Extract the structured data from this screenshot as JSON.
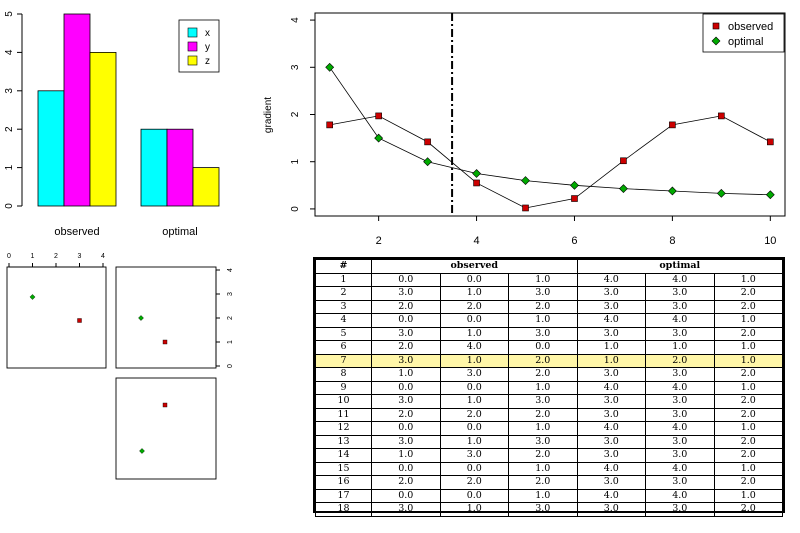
{
  "colors": {
    "x": "#00FFFF",
    "y": "#FF00FF",
    "z": "#FFFF00",
    "observed": "#CC0000",
    "optimal": "#00AA00",
    "highlight": "#FFF6A8"
  },
  "bar_legend": [
    "x",
    "y",
    "z"
  ],
  "line_legend": [
    "observed",
    "optimal"
  ],
  "table": {
    "header": [
      "#",
      "observed",
      "optimal"
    ],
    "highlight_row": "7",
    "rows": [
      [
        "1",
        "0.0",
        "0.0",
        "1.0",
        "4.0",
        "4.0",
        "1.0"
      ],
      [
        "2",
        "3.0",
        "1.0",
        "3.0",
        "3.0",
        "3.0",
        "2.0"
      ],
      [
        "3",
        "2.0",
        "2.0",
        "2.0",
        "3.0",
        "3.0",
        "2.0"
      ],
      [
        "4",
        "0.0",
        "0.0",
        "1.0",
        "4.0",
        "4.0",
        "1.0"
      ],
      [
        "5",
        "3.0",
        "1.0",
        "3.0",
        "3.0",
        "3.0",
        "2.0"
      ],
      [
        "6",
        "2.0",
        "4.0",
        "0.0",
        "1.0",
        "1.0",
        "1.0"
      ],
      [
        "7",
        "3.0",
        "1.0",
        "2.0",
        "1.0",
        "2.0",
        "1.0"
      ],
      [
        "8",
        "1.0",
        "3.0",
        "2.0",
        "3.0",
        "3.0",
        "2.0"
      ],
      [
        "9",
        "0.0",
        "0.0",
        "1.0",
        "4.0",
        "4.0",
        "1.0"
      ],
      [
        "10",
        "3.0",
        "1.0",
        "3.0",
        "3.0",
        "3.0",
        "2.0"
      ],
      [
        "11",
        "2.0",
        "2.0",
        "2.0",
        "3.0",
        "3.0",
        "2.0"
      ],
      [
        "12",
        "0.0",
        "0.0",
        "1.0",
        "4.0",
        "4.0",
        "1.0"
      ],
      [
        "13",
        "3.0",
        "1.0",
        "3.0",
        "3.0",
        "3.0",
        "2.0"
      ],
      [
        "14",
        "1.0",
        "3.0",
        "2.0",
        "3.0",
        "3.0",
        "2.0"
      ],
      [
        "15",
        "0.0",
        "0.0",
        "1.0",
        "4.0",
        "4.0",
        "1.0"
      ],
      [
        "16",
        "2.0",
        "2.0",
        "2.0",
        "3.0",
        "3.0",
        "2.0"
      ],
      [
        "17",
        "0.0",
        "0.0",
        "1.0",
        "4.0",
        "4.0",
        "1.0"
      ],
      [
        "18",
        "3.0",
        "1.0",
        "3.0",
        "3.0",
        "3.0",
        "2.0"
      ]
    ]
  },
  "chart_data": [
    {
      "type": "bar",
      "categories": [
        "observed",
        "optimal"
      ],
      "series": [
        {
          "name": "x",
          "values": [
            3,
            2
          ]
        },
        {
          "name": "y",
          "values": [
            5,
            2
          ]
        },
        {
          "name": "z",
          "values": [
            4,
            1
          ]
        }
      ],
      "ylim": [
        0,
        5
      ],
      "yticks": [
        0,
        1,
        2,
        3,
        4,
        5
      ],
      "legend": "top-right"
    },
    {
      "type": "line",
      "ylabel": "gradient",
      "x": [
        1,
        2,
        3,
        4,
        5,
        6,
        7,
        8,
        9,
        10
      ],
      "series": [
        {
          "name": "observed",
          "values": [
            1.78,
            1.97,
            1.42,
            0.55,
            0.02,
            0.22,
            1.02,
            1.78,
            1.97,
            1.42
          ]
        },
        {
          "name": "optimal",
          "values": [
            3.0,
            1.5,
            1.0,
            0.75,
            0.6,
            0.5,
            0.43,
            0.38,
            0.33,
            0.3
          ]
        }
      ],
      "vline": 3.5,
      "xticks": [
        2,
        4,
        6,
        8,
        10
      ],
      "yticks": [
        0,
        1,
        2,
        3,
        4
      ],
      "xlim": [
        0.7,
        10.3
      ],
      "ylim": [
        -0.15,
        4.15
      ],
      "legend": "top-right"
    },
    {
      "type": "scatter",
      "panel": "top-left",
      "xticks": [
        0,
        1,
        2,
        3,
        4
      ],
      "xlim": [
        0,
        4
      ],
      "points": [
        {
          "series": "optimal",
          "x": 1,
          "y": 2
        },
        {
          "series": "observed",
          "x": 3,
          "y": 1
        }
      ]
    },
    {
      "type": "scatter",
      "panel": "top-right",
      "yticks": [
        0,
        1,
        2,
        3,
        4
      ],
      "ylim": [
        0,
        4
      ],
      "points": [
        {
          "series": "optimal",
          "x": 1,
          "y": 2
        },
        {
          "series": "observed",
          "x": 2,
          "y": 1
        }
      ]
    },
    {
      "type": "scatter",
      "panel": "bottom-right",
      "points": [
        {
          "series": "observed",
          "x": 2,
          "y": 3
        },
        {
          "series": "optimal",
          "x": 1,
          "y": 1
        }
      ]
    }
  ]
}
